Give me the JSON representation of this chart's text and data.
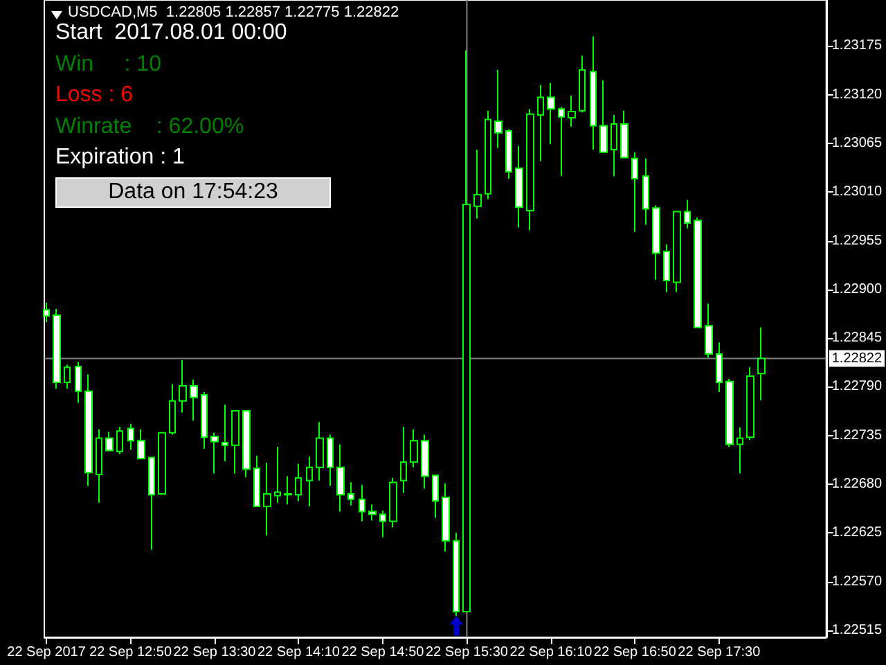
{
  "chart_data": {
    "type": "candlestick",
    "title": "USDCAD,M5  1.22805 1.22857 1.22775 1.22822",
    "annotations": [
      "Start  2017.08.01 00:00",
      "Win     : 10",
      "Loss : 6",
      "Winrate    : 62.00%",
      "Expiration : 1",
      "Data on 17:54:23"
    ],
    "x": [
      "2017-09-22T12:10",
      "2017-09-22T12:15",
      "2017-09-22T12:20",
      "2017-09-22T12:25",
      "2017-09-22T12:30",
      "2017-09-22T12:35",
      "2017-09-22T12:40",
      "2017-09-22T12:45",
      "2017-09-22T12:50",
      "2017-09-22T12:55",
      "2017-09-22T13:00",
      "2017-09-22T13:05",
      "2017-09-22T13:10",
      "2017-09-22T13:15",
      "2017-09-22T13:20",
      "2017-09-22T13:25",
      "2017-09-22T13:30",
      "2017-09-22T13:35",
      "2017-09-22T13:40",
      "2017-09-22T13:45",
      "2017-09-22T13:50",
      "2017-09-22T13:55",
      "2017-09-22T14:00",
      "2017-09-22T14:05",
      "2017-09-22T14:10",
      "2017-09-22T14:15",
      "2017-09-22T14:20",
      "2017-09-22T14:25",
      "2017-09-22T14:30",
      "2017-09-22T14:35",
      "2017-09-22T14:40",
      "2017-09-22T14:45",
      "2017-09-22T14:50",
      "2017-09-22T14:55",
      "2017-09-22T15:00",
      "2017-09-22T15:05",
      "2017-09-22T15:10",
      "2017-09-22T15:15",
      "2017-09-22T15:20",
      "2017-09-22T15:25",
      "2017-09-22T15:30",
      "2017-09-22T15:35",
      "2017-09-22T15:40",
      "2017-09-22T15:45",
      "2017-09-22T15:50",
      "2017-09-22T15:55",
      "2017-09-22T16:00",
      "2017-09-22T16:05",
      "2017-09-22T16:10",
      "2017-09-22T16:15",
      "2017-09-22T16:20",
      "2017-09-22T16:25",
      "2017-09-22T16:30",
      "2017-09-22T16:35",
      "2017-09-22T16:40",
      "2017-09-22T16:45",
      "2017-09-22T16:50",
      "2017-09-22T16:55",
      "2017-09-22T17:00",
      "2017-09-22T17:05",
      "2017-09-22T17:10",
      "2017-09-22T17:15",
      "2017-09-22T17:20",
      "2017-09-22T17:25",
      "2017-09-22T17:30",
      "2017-09-22T17:35",
      "2017-09-22T17:40",
      "2017-09-22T17:45",
      "2017-09-22T17:50"
    ],
    "series": [
      {
        "color": "#00ff00",
        "ohlc": [
          [
            1.22877,
            1.22885,
            1.22863,
            1.2287
          ],
          [
            1.22871,
            1.22878,
            1.22788,
            1.22795
          ],
          [
            1.22795,
            1.22815,
            1.22788,
            1.22812
          ],
          [
            1.22813,
            1.22818,
            1.22772,
            1.22785
          ],
          [
            1.22785,
            1.22804,
            1.22678,
            1.22693
          ],
          [
            1.22691,
            1.22742,
            1.22659,
            1.22732
          ],
          [
            1.22732,
            1.22739,
            1.22718,
            1.22718
          ],
          [
            1.22717,
            1.22745,
            1.22714,
            1.2274
          ],
          [
            1.22743,
            1.22748,
            1.22719,
            1.22729
          ],
          [
            1.22729,
            1.22742,
            1.22708,
            1.22709
          ],
          [
            1.2271,
            1.2271,
            1.22606,
            1.22668
          ],
          [
            1.22669,
            1.22738,
            1.22669,
            1.22738
          ],
          [
            1.22738,
            1.22793,
            1.22736,
            1.22774
          ],
          [
            1.22774,
            1.2282,
            1.22761,
            1.22791
          ],
          [
            1.22791,
            1.22798,
            1.22752,
            1.22778
          ],
          [
            1.22781,
            1.22784,
            1.2272,
            1.22733
          ],
          [
            1.22734,
            1.22738,
            1.22692,
            1.22728
          ],
          [
            1.22727,
            1.2277,
            1.22706,
            1.22724
          ],
          [
            1.22724,
            1.22763,
            1.22692,
            1.22763
          ],
          [
            1.22763,
            1.22763,
            1.22688,
            1.22697
          ],
          [
            1.22698,
            1.22712,
            1.22655,
            1.22655
          ],
          [
            1.22655,
            1.22704,
            1.22622,
            1.22669
          ],
          [
            1.22667,
            1.22722,
            1.22659,
            1.22671
          ],
          [
            1.22668,
            1.22689,
            1.22657,
            1.22669
          ],
          [
            1.22668,
            1.22703,
            1.22661,
            1.22687
          ],
          [
            1.22684,
            1.22711,
            1.22655,
            1.22699
          ],
          [
            1.22699,
            1.2275,
            1.22684,
            1.22732
          ],
          [
            1.22732,
            1.22736,
            1.22678,
            1.22699
          ],
          [
            1.22699,
            1.22725,
            1.22649,
            1.22668
          ],
          [
            1.22669,
            1.22682,
            1.22656,
            1.22663
          ],
          [
            1.22663,
            1.22679,
            1.22638,
            1.22649
          ],
          [
            1.22649,
            1.22657,
            1.22639,
            1.22646
          ],
          [
            1.22646,
            1.2265,
            1.2262,
            1.22638
          ],
          [
            1.22638,
            1.22687,
            1.22631,
            1.22682
          ],
          [
            1.22684,
            1.22745,
            1.2267,
            1.22705
          ],
          [
            1.22705,
            1.22742,
            1.22699,
            1.22729
          ],
          [
            1.22729,
            1.22736,
            1.22675,
            1.22689
          ],
          [
            1.2269,
            1.2269,
            1.22642,
            1.22661
          ],
          [
            1.22665,
            1.22681,
            1.22604,
            1.22616
          ],
          [
            1.22616,
            1.22625,
            1.22531,
            1.22536
          ],
          [
            1.22536,
            1.2317,
            1.22536,
            1.22996
          ],
          [
            1.22994,
            1.23058,
            1.2298,
            1.23007
          ],
          [
            1.23008,
            1.23102,
            1.23002,
            1.23092
          ],
          [
            1.2309,
            1.23148,
            1.2306,
            1.23077
          ],
          [
            1.23079,
            1.23081,
            1.23025,
            1.23033
          ],
          [
            1.23037,
            1.23062,
            1.2297,
            1.22993
          ],
          [
            1.22989,
            1.23104,
            1.22967,
            1.23098
          ],
          [
            1.23097,
            1.23131,
            1.23045,
            1.23117
          ],
          [
            1.23117,
            1.23133,
            1.23064,
            1.23104
          ],
          [
            1.23104,
            1.23106,
            1.23028,
            1.23095
          ],
          [
            1.23094,
            1.23119,
            1.23084,
            1.23101
          ],
          [
            1.23102,
            1.23164,
            1.231,
            1.23148
          ],
          [
            1.23146,
            1.23186,
            1.23058,
            1.23085
          ],
          [
            1.23085,
            1.23136,
            1.23055,
            1.23055
          ],
          [
            1.23058,
            1.23097,
            1.23028,
            1.23087
          ],
          [
            1.23087,
            1.23102,
            1.23049,
            1.23049
          ],
          [
            1.23048,
            1.23055,
            1.22965,
            1.23025
          ],
          [
            1.23028,
            1.23048,
            1.22973,
            1.22991
          ],
          [
            1.22992,
            1.22995,
            1.22911,
            1.22941
          ],
          [
            1.22943,
            1.22951,
            1.22897,
            1.2291
          ],
          [
            1.22908,
            1.22988,
            1.22897,
            1.22988
          ],
          [
            1.22988,
            1.23001,
            1.22969,
            1.22975
          ],
          [
            1.22978,
            1.22981,
            1.22857,
            1.22857
          ],
          [
            1.22859,
            1.22884,
            1.22823,
            1.22827
          ],
          [
            1.22827,
            1.2284,
            1.22784,
            1.22795
          ],
          [
            1.22796,
            1.22799,
            1.22722,
            1.22725
          ],
          [
            1.22725,
            1.22744,
            1.22692,
            1.22732
          ],
          [
            1.22733,
            1.22812,
            1.2273,
            1.22802
          ],
          [
            1.22805,
            1.22857,
            1.22775,
            1.22822
          ]
        ]
      },
      {
        "type": "scatter",
        "color": "#0000ff",
        "x": [
          "2017-09-22T15:25"
        ],
        "values": [
          1.2252
        ]
      }
    ],
    "xlim": [
      "2017-09-22T12:09",
      "2017-09-22T18:21"
    ],
    "ylim": [
      1.22507,
      1.23227
    ],
    "yticks": [
      {
        "value": 1.22515,
        "label": "1.22515"
      },
      {
        "value": 1.2257,
        "label": "1.22570"
      },
      {
        "value": 1.22625,
        "label": "1.22625"
      },
      {
        "value": 1.2268,
        "label": "1.22680"
      },
      {
        "value": 1.22735,
        "label": "1.22735"
      },
      {
        "value": 1.2279,
        "label": "1.22790"
      },
      {
        "value": 1.22845,
        "label": "1.22845"
      },
      {
        "value": 1.229,
        "label": "1.22900"
      },
      {
        "value": 1.22955,
        "label": "1.22955"
      },
      {
        "value": 1.2301,
        "label": "1.23010"
      },
      {
        "value": 1.23065,
        "label": "1.23065"
      },
      {
        "value": 1.2312,
        "label": "1.23120"
      },
      {
        "value": 1.23175,
        "label": "1.23175"
      }
    ],
    "xticks": [
      {
        "value": "2017-09-22T12:10",
        "label": "22 Sep 2017"
      },
      {
        "value": "2017-09-22T12:50",
        "label": "22 Sep 12:50"
      },
      {
        "value": "2017-09-22T13:30",
        "label": "22 Sep 13:30"
      },
      {
        "value": "2017-09-22T14:10",
        "label": "22 Sep 14:10"
      },
      {
        "value": "2017-09-22T14:50",
        "label": "22 Sep 14:50"
      },
      {
        "value": "2017-09-22T15:30",
        "label": "22 Sep 15:30"
      },
      {
        "value": "2017-09-22T16:10",
        "label": "22 Sep 16:10"
      },
      {
        "value": "2017-09-22T16:50",
        "label": "22 Sep 16:50"
      },
      {
        "value": "2017-09-22T17:30",
        "label": "22 Sep 17:30"
      }
    ],
    "ref_lines": [
      {
        "axis": "y",
        "value": 1.22822,
        "label": "1.22822",
        "color": "#808080",
        "line_style": "solid"
      },
      {
        "axis": "x",
        "value": "2017-09-22T15:30",
        "color": "#808080",
        "line_style": "solid"
      }
    ]
  }
}
